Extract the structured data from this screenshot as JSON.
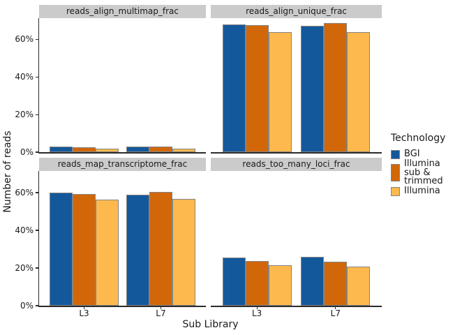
{
  "chart_data": {
    "type": "bar",
    "title": "",
    "xlabel": "Sub Library",
    "ylabel": "Number of reads",
    "ylim": [
      0,
      71.5
    ],
    "yticks": [
      0,
      20,
      40,
      60
    ],
    "ytick_labels": [
      "0%",
      "20%",
      "40%",
      "60%"
    ],
    "categories": [
      "L3",
      "L7"
    ],
    "grid": "off",
    "legend_position": "right",
    "legend": {
      "title": "Technology",
      "entries": [
        {
          "label": "BGI",
          "color": "#14589C"
        },
        {
          "label": "Illumina\nsub & trimmed",
          "color": "#D2670A"
        },
        {
          "label": "Illumina",
          "color": "#FDB94D"
        }
      ]
    },
    "facets": [
      {
        "title": "reads_align_multimap_frac",
        "series": [
          {
            "name": "BGI",
            "values": [
              3.0,
              3.0
            ]
          },
          {
            "name": "Illumina sub & trimmed",
            "values": [
              2.7,
              2.8
            ]
          },
          {
            "name": "Illumina",
            "values": [
              1.9,
              1.9
            ]
          }
        ]
      },
      {
        "title": "reads_align_unique_frac",
        "series": [
          {
            "name": "BGI",
            "values": [
              68.2,
              67.3
            ]
          },
          {
            "name": "Illumina sub & trimmed",
            "values": [
              67.6,
              68.8
            ]
          },
          {
            "name": "Illumina",
            "values": [
              64.2,
              64.2
            ]
          }
        ]
      },
      {
        "title": "reads_map_transcriptome_frac",
        "series": [
          {
            "name": "BGI",
            "values": [
              60.0,
              58.9
            ]
          },
          {
            "name": "Illumina sub & trimmed",
            "values": [
              59.4,
              60.3
            ]
          },
          {
            "name": "Illumina",
            "values": [
              56.4,
              56.7
            ]
          }
        ]
      },
      {
        "title": "reads_too_many_loci_frac",
        "series": [
          {
            "name": "BGI",
            "values": [
              25.5,
              25.8
            ]
          },
          {
            "name": "Illumina sub & trimmed",
            "values": [
              23.7,
              23.3
            ]
          },
          {
            "name": "Illumina",
            "values": [
              21.6,
              20.9
            ]
          }
        ]
      }
    ],
    "colors": {
      "bar_border": "#848484",
      "strip_bg": "#CBCBCB",
      "axis": "#2B2B2B",
      "text": "#1A1A1A",
      "background": "#FFFFFF"
    }
  }
}
